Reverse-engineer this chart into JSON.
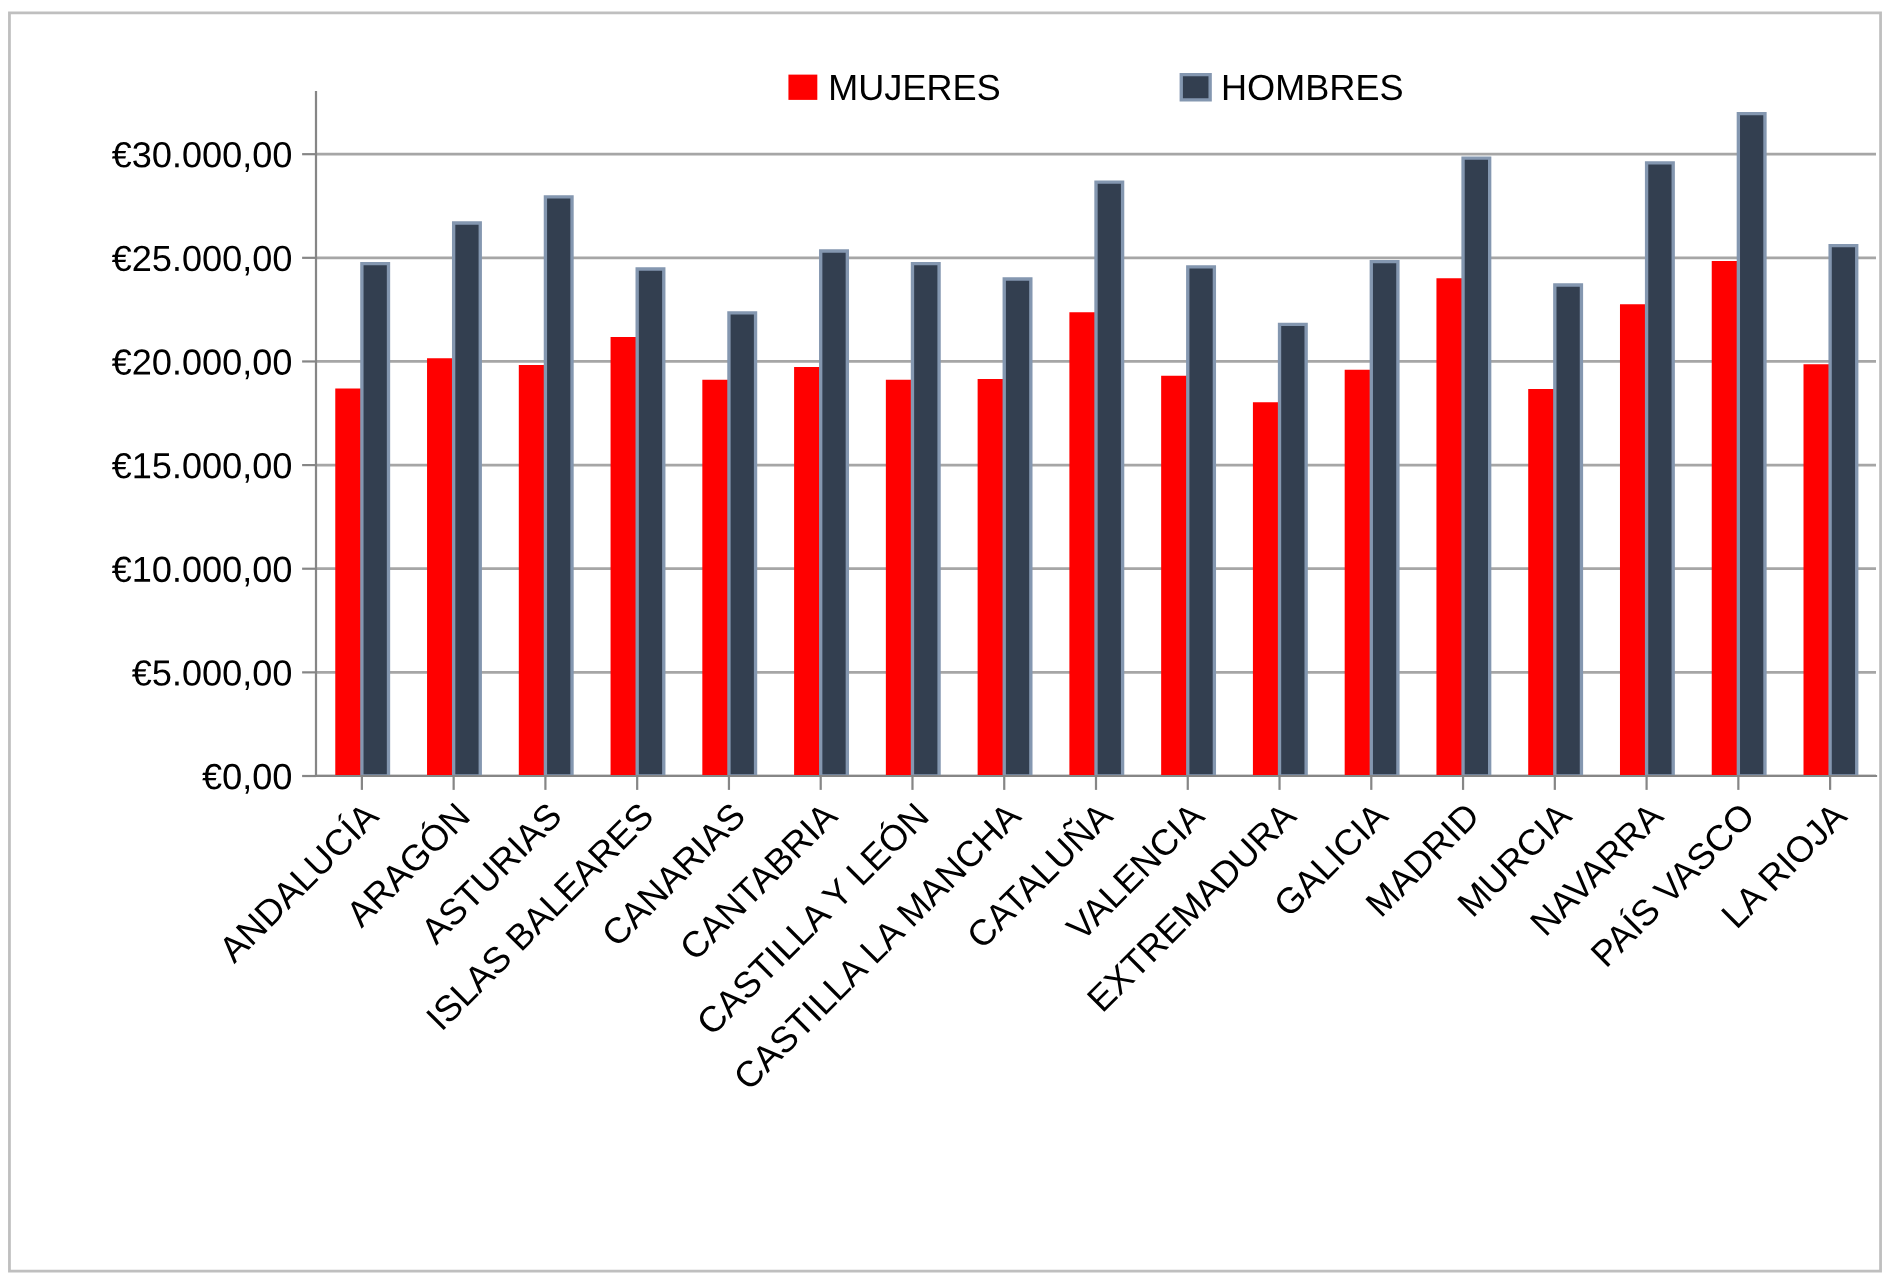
{
  "chart_data": {
    "type": "bar",
    "categories": [
      "ANDALUCÍA",
      "ARAGÓN",
      "ASTURIAS",
      "ISLAS BALEARES",
      "CANARIAS",
      "CANTABRIA",
      "CASTILLA Y LEÓN",
      "CASTILLA LA MANCHA",
      "CATALUÑA",
      "VALENCIA",
      "EXTREMADURA",
      "GALICIA",
      "MADRID",
      "MURCIA",
      "NAVARRA",
      "PAÍS VASCO",
      "LA RIOJA"
    ],
    "series": [
      {
        "name": "MUJERES",
        "color": "#ff0000",
        "values": [
          18700,
          20150,
          19830,
          21180,
          19120,
          19730,
          19120,
          19150,
          22370,
          19310,
          18030,
          19600,
          24010,
          18670,
          22760,
          24850,
          19860
        ]
      },
      {
        "name": "HOMBRES",
        "color": "#333f50",
        "values": [
          24720,
          26680,
          27940,
          24460,
          22340,
          25330,
          24720,
          23980,
          28650,
          24560,
          21790,
          24820,
          29810,
          23690,
          29580,
          31960,
          25590
        ]
      }
    ],
    "ylim": [
      0,
      33000
    ],
    "yticks": [
      {
        "value": 0,
        "label": "€0,00"
      },
      {
        "value": 5000,
        "label": "€5.000,00"
      },
      {
        "value": 10000,
        "label": "€10.000,00"
      },
      {
        "value": 15000,
        "label": "€15.000,00"
      },
      {
        "value": 20000,
        "label": "€20.000,00"
      },
      {
        "value": 25000,
        "label": "€25.000,00"
      },
      {
        "value": 30000,
        "label": "€30.000,00"
      }
    ],
    "grid": "y",
    "legend": "top"
  }
}
